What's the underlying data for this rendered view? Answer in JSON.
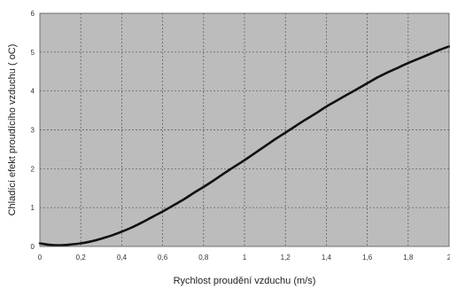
{
  "chart_data": {
    "type": "line",
    "xlabel": "Rychlost proudění vzduchu (m/s)",
    "ylabel": "Chladící efekt proudícího vzduchu ( oC)",
    "xlim": [
      0,
      2
    ],
    "ylim": [
      0,
      6
    ],
    "x_ticks": [
      "0",
      "0,2",
      "0,4",
      "0,6",
      "0,8",
      "1",
      "1,2",
      "1,4",
      "1,6",
      "1,8",
      "2"
    ],
    "y_ticks": [
      "0",
      "1",
      "2",
      "3",
      "4",
      "5",
      "6"
    ],
    "grid": true,
    "plot_background": "#bcbcbc",
    "line_color": "#111111",
    "series": [
      {
        "x": [
          0,
          0.05,
          0.1,
          0.15,
          0.2,
          0.25,
          0.3,
          0.35,
          0.4,
          0.45,
          0.5,
          0.55,
          0.6,
          0.65,
          0.7,
          0.75,
          0.8,
          0.85,
          0.9,
          0.95,
          1.0,
          1.05,
          1.1,
          1.15,
          1.2,
          1.25,
          1.3,
          1.35,
          1.4,
          1.45,
          1.5,
          1.55,
          1.6,
          1.65,
          1.7,
          1.75,
          1.8,
          1.85,
          1.9,
          1.95,
          2.0
        ],
        "values": [
          0.08,
          0.04,
          0.03,
          0.05,
          0.08,
          0.13,
          0.2,
          0.28,
          0.38,
          0.49,
          0.62,
          0.76,
          0.9,
          1.05,
          1.2,
          1.37,
          1.53,
          1.7,
          1.88,
          2.05,
          2.22,
          2.4,
          2.58,
          2.76,
          2.93,
          3.1,
          3.27,
          3.43,
          3.6,
          3.75,
          3.9,
          4.05,
          4.2,
          4.35,
          4.48,
          4.6,
          4.72,
          4.83,
          4.94,
          5.05,
          5.15
        ]
      }
    ]
  }
}
